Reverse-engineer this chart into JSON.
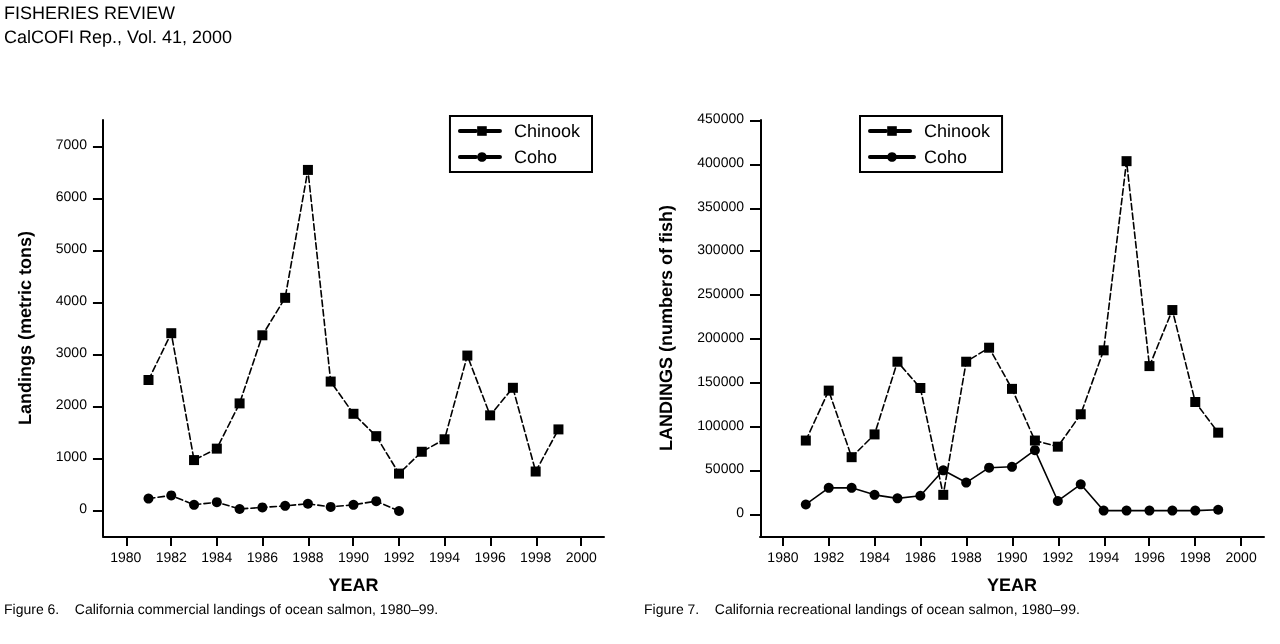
{
  "chart_data": [
    {
      "type": "line",
      "xlabel": "YEAR",
      "ylabel": "Landings (metric tons)",
      "annotations": [
        "FISHERIES REVIEW",
        "CalCOFI Rep., Vol. 41, 2000",
        "Figure 6.    California commercial landings of ocean salmon, 1980–99."
      ],
      "x": [
        1981,
        1982,
        1983,
        1984,
        1985,
        1986,
        1987,
        1988,
        1989,
        1990,
        1991,
        1992,
        1993,
        1994,
        1995,
        1996,
        1997,
        1998,
        1999
      ],
      "series": [
        {
          "name": "Chinook",
          "color": "#000000",
          "marker": "square",
          "line_style": "dashed",
          "values": [
            2500,
            3400,
            960,
            1180,
            2050,
            3360,
            4080,
            6540,
            2470,
            1850,
            1420,
            700,
            1120,
            1360,
            2970,
            1820,
            2350,
            740,
            1550
          ]
        },
        {
          "name": "Coho",
          "color": "#000000",
          "marker": "circle",
          "line_style": "dashed",
          "values": [
            220,
            280,
            100,
            150,
            20,
            50,
            80,
            120,
            60,
            100,
            170,
            -20,
            null,
            null,
            null,
            null,
            null,
            null,
            null
          ]
        }
      ],
      "xlim": [
        1979,
        2001
      ],
      "xticks": [
        1980,
        1982,
        1984,
        1986,
        1988,
        1990,
        1992,
        1994,
        1996,
        1998,
        2000
      ],
      "ylim": [
        -500,
        7500
      ],
      "yticks": [
        0,
        1000,
        2000,
        3000,
        4000,
        5000,
        6000,
        7000
      ],
      "grid": false,
      "legend": "top right"
    },
    {
      "type": "line",
      "xlabel": "YEAR",
      "ylabel": "LANDINGS (numbers of fish)",
      "annotations": [
        "Figure 7.    California recreational landings of ocean salmon, 1980–99."
      ],
      "x": [
        1981,
        1982,
        1983,
        1984,
        1985,
        1986,
        1987,
        1988,
        1989,
        1990,
        1991,
        1992,
        1993,
        1994,
        1995,
        1996,
        1997,
        1998,
        1999
      ],
      "series": [
        {
          "name": "Chinook",
          "color": "#000000",
          "marker": "square",
          "line_style": "dashed",
          "values": [
            84000,
            141000,
            65000,
            91000,
            174000,
            144000,
            22000,
            174000,
            190000,
            143000,
            84000,
            77000,
            114000,
            187000,
            403000,
            169000,
            233000,
            128000,
            93000
          ]
        },
        {
          "name": "Coho",
          "color": "#000000",
          "marker": "circle",
          "line_style": "solid",
          "values": [
            11000,
            30000,
            30000,
            22000,
            18000,
            21000,
            50000,
            36000,
            53000,
            54000,
            73000,
            15000,
            34000,
            4000,
            4000,
            4000,
            4000,
            4000,
            5000
          ]
        }
      ],
      "xlim": [
        1979,
        2001
      ],
      "xticks": [
        1980,
        1982,
        1984,
        1986,
        1988,
        1990,
        1992,
        1994,
        1996,
        1998,
        2000
      ],
      "ylim": [
        -25000,
        450000
      ],
      "yticks": [
        0,
        50000,
        100000,
        150000,
        200000,
        250000,
        300000,
        350000,
        400000,
        450000
      ],
      "grid": false,
      "legend": "top left"
    }
  ]
}
